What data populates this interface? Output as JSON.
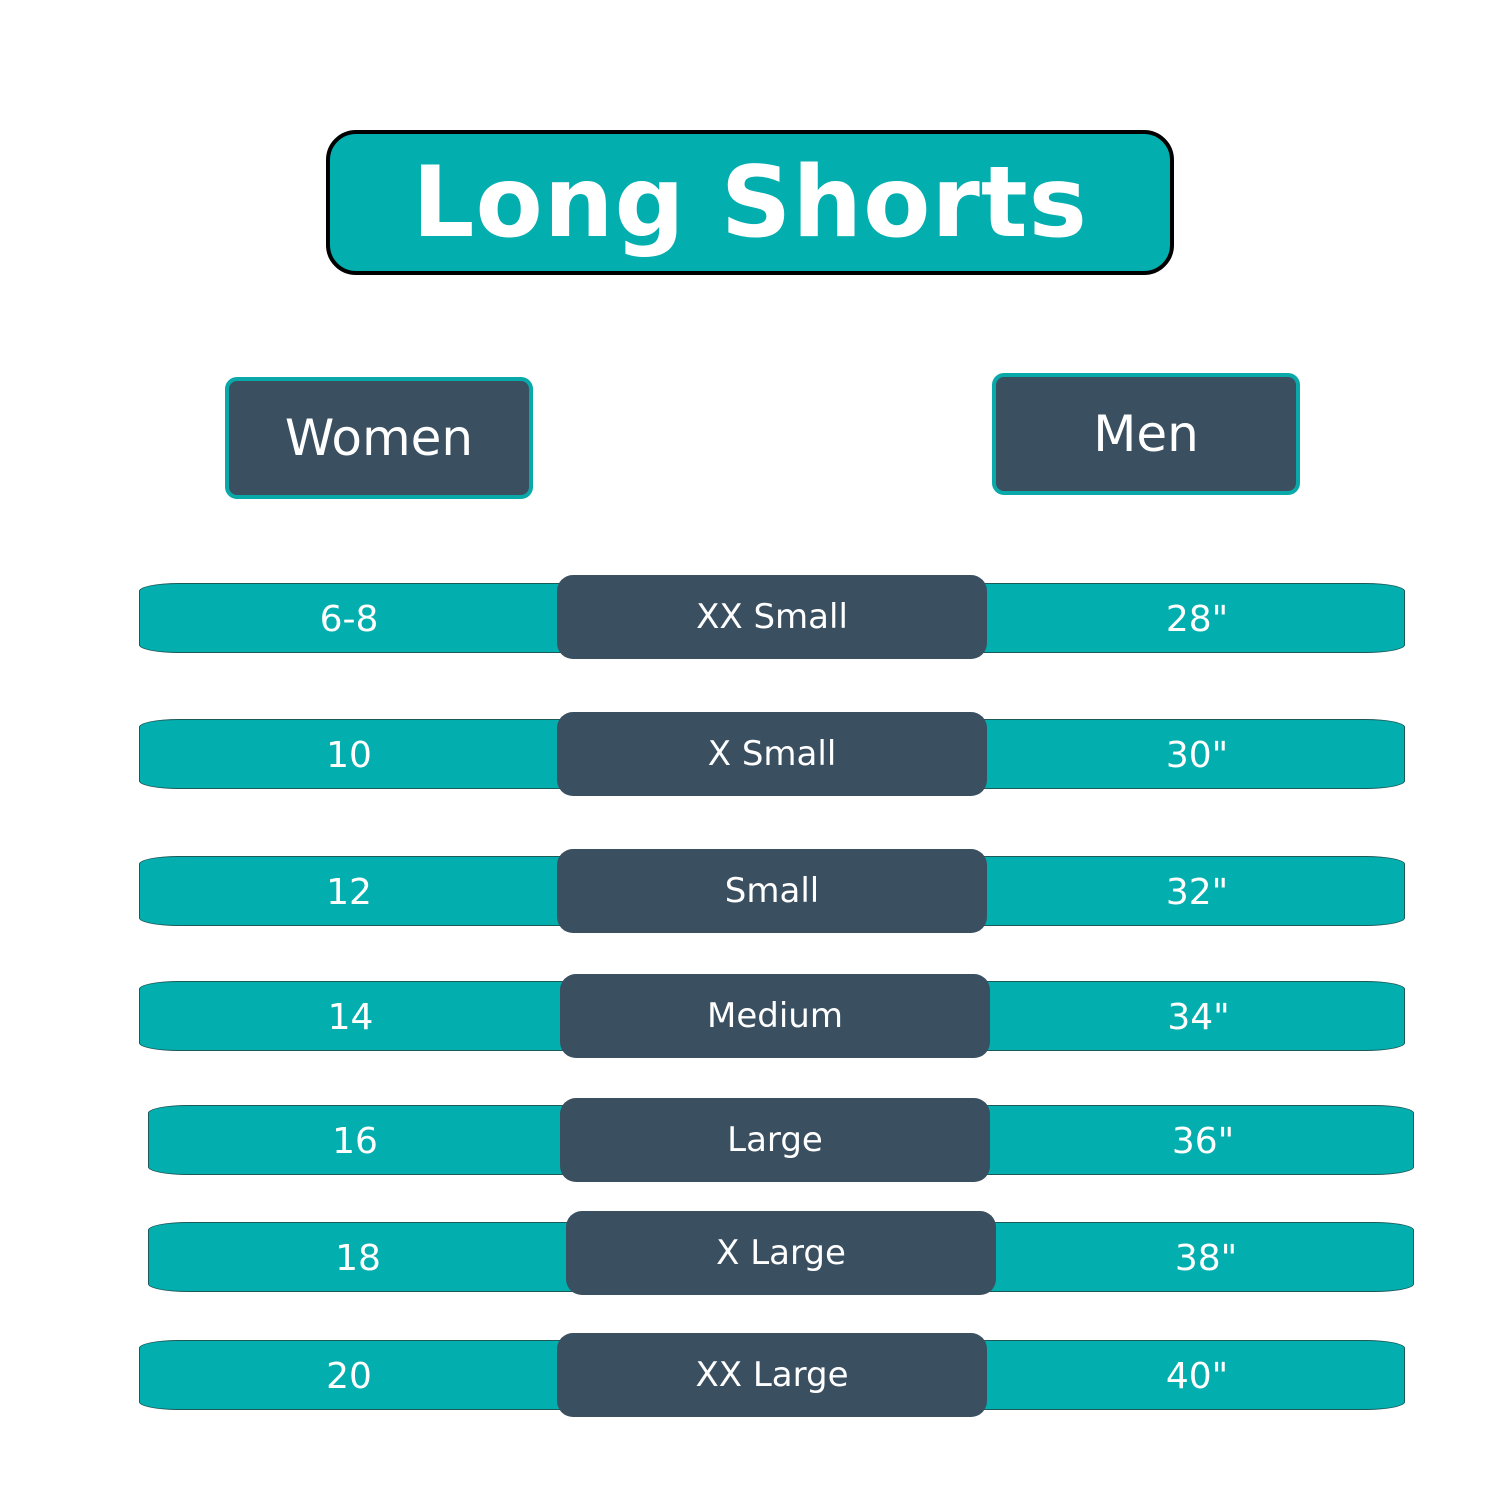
{
  "title": "Long Shorts",
  "headers": {
    "women": "Women",
    "men": "Men"
  },
  "colors": {
    "teal": "#03aeae",
    "dark": "#3a5061"
  },
  "rows": [
    {
      "women": "6-8",
      "size": "XX Small",
      "men": "28\""
    },
    {
      "women": "10",
      "size": "X Small",
      "men": "30\""
    },
    {
      "women": "12",
      "size": "Small",
      "men": "32\""
    },
    {
      "women": "14",
      "size": "Medium",
      "men": "34\""
    },
    {
      "women": "16",
      "size": "Large",
      "men": "36\""
    },
    {
      "women": "18",
      "size": "X  Large",
      "men": "38\""
    },
    {
      "women": "20",
      "size": "XX Large",
      "men": "40\""
    }
  ]
}
